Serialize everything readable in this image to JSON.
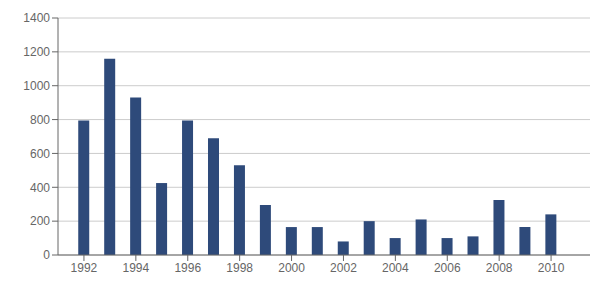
{
  "chart_data": {
    "type": "bar",
    "x": [
      1992,
      1993,
      1994,
      1995,
      1996,
      1997,
      1998,
      1999,
      2000,
      2001,
      2002,
      2003,
      2004,
      2005,
      2006,
      2007,
      2008,
      2009,
      2010
    ],
    "values": [
      795,
      1160,
      930,
      425,
      795,
      690,
      530,
      295,
      165,
      165,
      80,
      200,
      100,
      210,
      100,
      110,
      325,
      165,
      240
    ],
    "color": "#2E4A7A",
    "xlim": [
      1991.0,
      2011.5
    ],
    "xticks": [
      1992,
      1994,
      1996,
      1998,
      2000,
      2002,
      2004,
      2006,
      2008,
      2010
    ],
    "ylim": [
      0,
      1400
    ],
    "yticks": [
      0,
      200,
      400,
      600,
      800,
      1000,
      1200,
      1400
    ],
    "grid": true
  }
}
